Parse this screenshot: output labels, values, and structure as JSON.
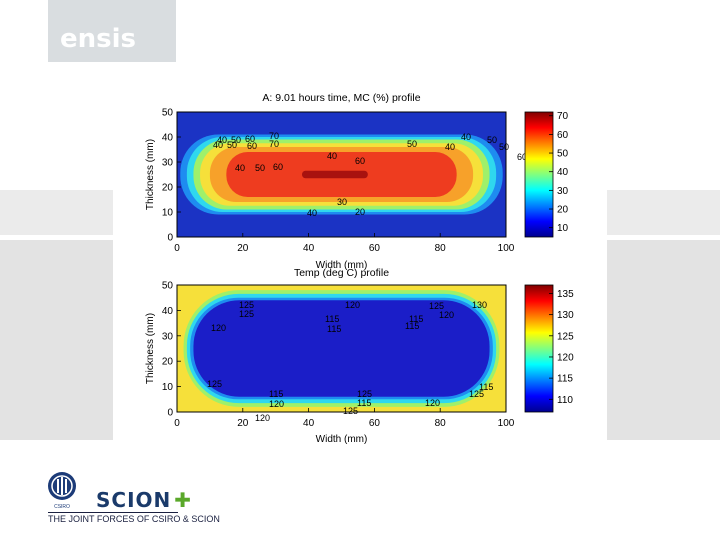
{
  "slide": {
    "logo_text": "ensis",
    "tagline": "THE JOINT FORCES OF CSIRO & SCION",
    "csiro_label": "CSIRO",
    "scion_label": "SCION"
  },
  "chart_data": [
    {
      "type": "heatmap",
      "title": "A: 9.01 hours time, MC (%) profile",
      "xlabel": "Width (mm)",
      "ylabel": "Thickness (mm)",
      "xlim": [
        0,
        100
      ],
      "ylim": [
        0,
        50
      ],
      "xticks": [
        0,
        20,
        40,
        60,
        80,
        100
      ],
      "yticks": [
        0,
        10,
        20,
        30,
        40,
        50
      ],
      "colorbar": {
        "ticks": [
          10,
          20,
          30,
          40,
          50,
          60,
          70
        ],
        "range": [
          5,
          72
        ]
      },
      "colormap": "jet",
      "contour_labels": [
        "40",
        "50",
        "60",
        "70",
        "70",
        "60",
        "50",
        "40",
        "40",
        "50",
        "60",
        "60",
        "50",
        "40",
        "40",
        "50",
        "60",
        "50",
        "40",
        "30",
        "20",
        "40"
      ],
      "regions": [
        {
          "level": 10,
          "color": "#1b33c4",
          "center": [
            50,
            25
          ],
          "half_width": 50,
          "half_height": 25
        },
        {
          "level": 20,
          "color": "#1e8cf0",
          "center": [
            50,
            25
          ],
          "half_width": 49,
          "half_height": 16
        },
        {
          "level": 30,
          "color": "#2fd8ee",
          "center": [
            50,
            25
          ],
          "half_width": 47,
          "half_height": 15
        },
        {
          "level": 40,
          "color": "#9ff06a",
          "center": [
            50,
            25
          ],
          "half_width": 45,
          "half_height": 14
        },
        {
          "level": 50,
          "color": "#f6e03a",
          "center": [
            50,
            25
          ],
          "half_width": 43,
          "half_height": 12.5
        },
        {
          "level": 60,
          "color": "#f7a12a",
          "center": [
            50,
            25
          ],
          "half_width": 40,
          "half_height": 11
        },
        {
          "level": 65,
          "color": "#ee3c1f",
          "center": [
            50,
            25
          ],
          "half_width": 35,
          "half_height": 9
        },
        {
          "level": 70,
          "color": "#a8120f",
          "center": [
            48,
            25
          ],
          "half_width": 10,
          "half_height": 1.5
        }
      ]
    },
    {
      "type": "heatmap",
      "title": "Temp (deg C) profile",
      "xlabel": "Width (mm)",
      "ylabel": "Thickness (mm)",
      "xlim": [
        0,
        100
      ],
      "ylim": [
        0,
        50
      ],
      "xticks": [
        0,
        20,
        40,
        60,
        80,
        100
      ],
      "yticks": [
        0,
        10,
        20,
        30,
        40,
        50
      ],
      "colorbar": {
        "ticks": [
          110,
          115,
          120,
          125,
          130,
          135
        ],
        "range": [
          107,
          137
        ]
      },
      "colormap": "jet",
      "contour_labels": [
        "125",
        "125",
        "120",
        "115",
        "115",
        "115",
        "120",
        "125",
        "130",
        "115",
        "120",
        "125",
        "115",
        "120",
        "125",
        "115",
        "120",
        "125",
        "115",
        "120",
        "125"
      ],
      "regions": [
        {
          "level": 135,
          "color": "#c8200f",
          "corners": true
        },
        {
          "level": 130,
          "color": "#f6e03a",
          "center": [
            50,
            25
          ],
          "half_width": 50,
          "half_height": 25
        },
        {
          "level": 125,
          "color": "#9ff06a",
          "center": [
            50,
            25
          ],
          "half_width": 48,
          "half_height": 23
        },
        {
          "level": 120,
          "color": "#2fd8ee",
          "center": [
            50,
            25
          ],
          "half_width": 47,
          "half_height": 21.5
        },
        {
          "level": 115,
          "color": "#1e8cf0",
          "center": [
            50,
            25
          ],
          "half_width": 46,
          "half_height": 20
        },
        {
          "level": 110,
          "color": "#1b1ec8",
          "center": [
            50,
            25
          ],
          "half_width": 45,
          "half_height": 19
        }
      ]
    }
  ]
}
